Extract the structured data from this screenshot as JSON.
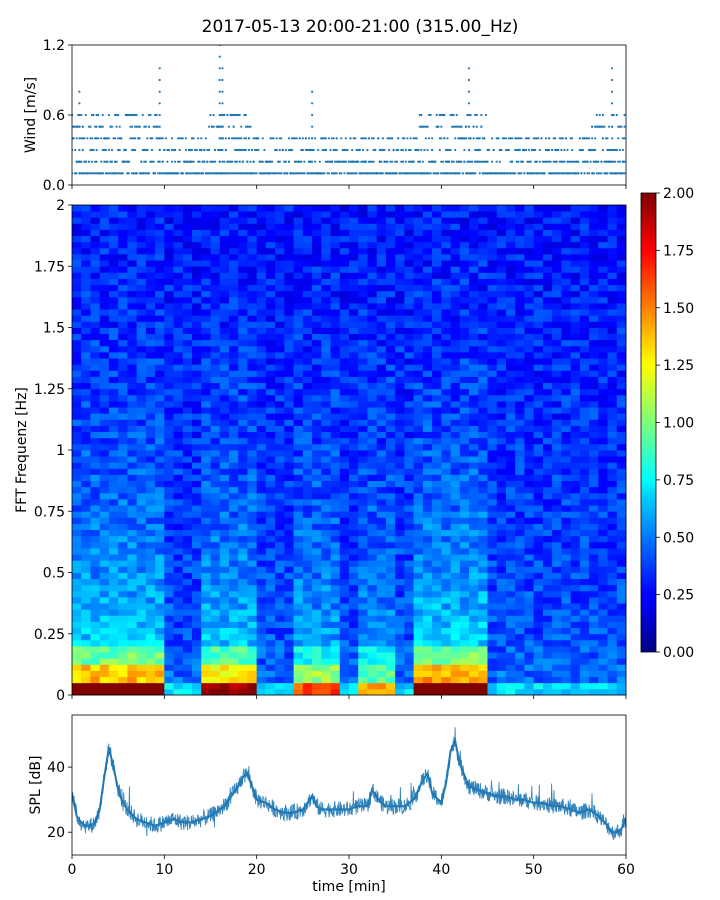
{
  "title": "2017-05-13 20:00-21:00 (315.00_Hz)",
  "colors": {
    "wind": "#1f77b4",
    "spl": "#1f77b4",
    "axes": "#000000"
  },
  "chart_data": [
    {
      "type": "scatter",
      "ylabel": "Wind [m/s]",
      "ylim": [
        0.0,
        1.2
      ],
      "yticks": [
        0.0,
        0.6,
        1.2
      ],
      "ytick_labels": [
        "0.0",
        "0.6",
        "1.2"
      ],
      "xlim": [
        0,
        60
      ],
      "levels": [
        0.1,
        0.2,
        0.3,
        0.4,
        0.5,
        0.6,
        0.7,
        0.8,
        0.9,
        1.0
      ],
      "peaks": [
        {
          "x": 0.8,
          "y": 0.8
        },
        {
          "x": 9.5,
          "y": 1.0
        },
        {
          "x": 16.0,
          "y": 1.2
        },
        {
          "x": 16.3,
          "y": 1.0
        },
        {
          "x": 26.0,
          "y": 0.8
        },
        {
          "x": 43.0,
          "y": 1.0
        },
        {
          "x": 58.5,
          "y": 1.0
        }
      ]
    },
    {
      "type": "heatmap",
      "ylabel": "FFT Frequenz [Hz]",
      "ylim": [
        0,
        2
      ],
      "yticks": [
        0,
        0.25,
        0.5,
        0.75,
        1,
        1.25,
        1.5,
        1.75,
        2
      ],
      "ytick_labels": [
        "0",
        "0.25",
        "0.5",
        "0.75",
        "1",
        "1.25",
        "1.5",
        "1.75",
        "2"
      ],
      "xlim": [
        0,
        60
      ],
      "colorbar": {
        "range": [
          0.0,
          2.0
        ],
        "ticks": [
          "0.00",
          "0.25",
          "0.50",
          "0.75",
          "1.00",
          "1.25",
          "1.50",
          "1.75",
          "2.00"
        ]
      },
      "active_segments": [
        {
          "x0": 0,
          "x1": 9.5,
          "level": 0.9
        },
        {
          "x0": 14.5,
          "x1": 19.5,
          "level": 0.8
        },
        {
          "x0": 24.5,
          "x1": 28.5,
          "level": 0.6
        },
        {
          "x0": 31.5,
          "x1": 34.5,
          "level": 0.5
        },
        {
          "x0": 37.5,
          "x1": 45.0,
          "level": 0.95
        }
      ]
    },
    {
      "type": "line",
      "ylabel": "SPL [dB]",
      "xlabel": "time [min]",
      "xlim": [
        0,
        60
      ],
      "ylim": [
        13,
        56
      ],
      "yticks": [
        20,
        40
      ],
      "ytick_labels": [
        "20",
        "40"
      ],
      "xticks": [
        0,
        10,
        20,
        30,
        40,
        50,
        60
      ],
      "xtick_labels": [
        "0",
        "10",
        "20",
        "30",
        "40",
        "50",
        "60"
      ],
      "x": [
        0,
        0.5,
        1,
        1.5,
        2,
        2.5,
        3,
        3.5,
        4,
        4.5,
        5,
        5.5,
        6,
        7,
        8,
        9,
        10,
        11,
        12,
        13,
        14,
        15,
        16,
        16.5,
        17,
        17.5,
        18,
        18.5,
        19,
        19.5,
        20,
        21,
        22,
        23,
        24,
        25,
        26,
        26.5,
        27,
        28,
        29,
        30,
        31,
        32,
        32.5,
        33,
        33.5,
        34,
        35,
        36,
        37,
        37.5,
        38,
        38.5,
        39,
        40,
        40.5,
        41,
        41.5,
        42,
        43,
        44,
        45,
        46,
        47,
        48,
        49,
        50,
        51,
        52,
        53,
        54,
        55,
        56,
        57,
        58,
        58.5,
        59,
        59.5,
        60
      ],
      "y": [
        32,
        25,
        23,
        22,
        22,
        23,
        27,
        37,
        46,
        40,
        33,
        29,
        27,
        24,
        23,
        22,
        23,
        24,
        23,
        23,
        24,
        25,
        27,
        28,
        30,
        32,
        34,
        37,
        38,
        34,
        30,
        29,
        27,
        26,
        26,
        27,
        31,
        28,
        27,
        27,
        27,
        27,
        28,
        28,
        33,
        31,
        29,
        28,
        28,
        28,
        30,
        33,
        36,
        38,
        32,
        29,
        35,
        45,
        48,
        41,
        34,
        33,
        32,
        31,
        31,
        30,
        30,
        29,
        29,
        28,
        28,
        27,
        26,
        27,
        25,
        22,
        20,
        20,
        21,
        24
      ]
    }
  ]
}
